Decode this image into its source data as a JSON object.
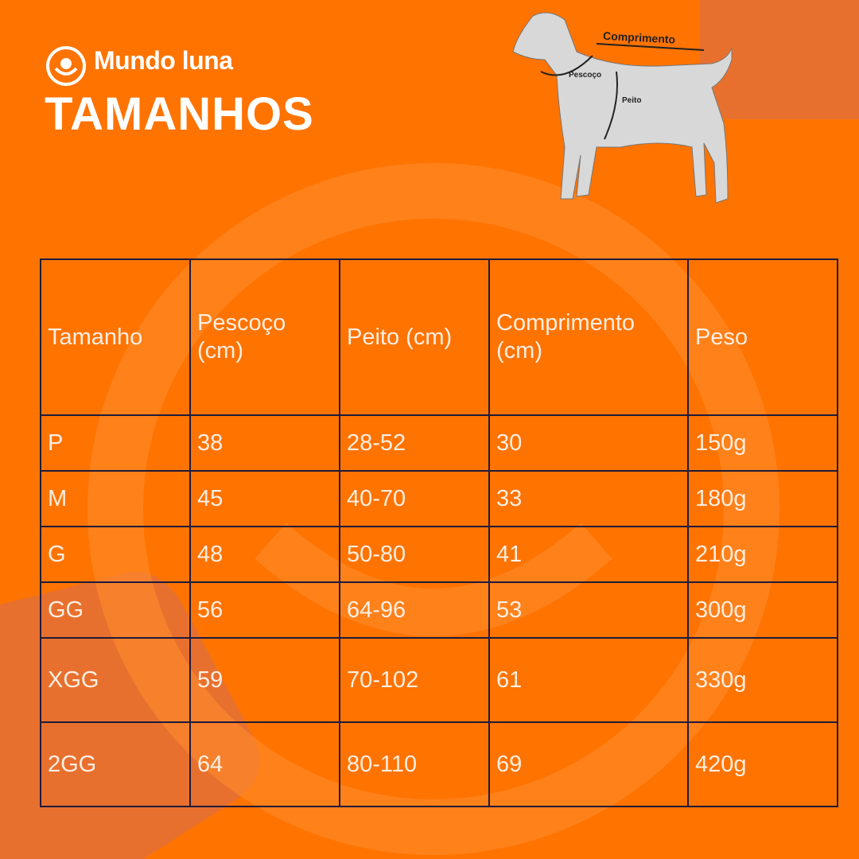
{
  "header": {
    "brand": "Mundo luna",
    "title": "TAMANHOS"
  },
  "diagram": {
    "labels": [
      "Comprimento",
      "Pescoço",
      "Peito"
    ]
  },
  "table": {
    "columns": [
      "Tamanho",
      "Pescoço (cm)",
      "Peito (cm)",
      "Comprimento (cm)",
      "Peso"
    ],
    "rows": [
      [
        "P",
        "38",
        "28-52",
        "30",
        "150g"
      ],
      [
        "M",
        "45",
        "40-70",
        "33",
        "180g"
      ],
      [
        "G",
        "48",
        "50-80",
        "41",
        "210g"
      ],
      [
        "GG",
        "56",
        "64-96",
        "53",
        "300g"
      ],
      [
        "XGG",
        "59",
        "70-102",
        "61",
        "330g"
      ],
      [
        "2GG",
        "64",
        "80-110",
        "69",
        "420g"
      ]
    ]
  }
}
